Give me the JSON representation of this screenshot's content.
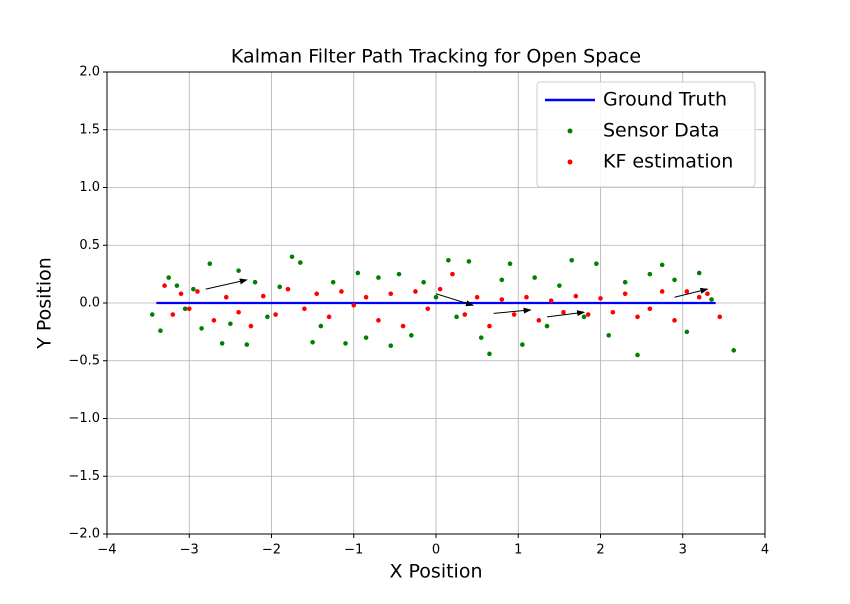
{
  "chart_data": {
    "type": "scatter",
    "title": "Kalman Filter Path Tracking for Open Space",
    "xlabel": "X Position",
    "ylabel": "Y Position",
    "xlim": [
      -4,
      4
    ],
    "ylim": [
      -2,
      2
    ],
    "xticks": [
      {
        "value": -4,
        "label": "−4"
      },
      {
        "value": -3,
        "label": "−3"
      },
      {
        "value": -2,
        "label": "−2"
      },
      {
        "value": -1,
        "label": "−1"
      },
      0,
      1,
      2,
      3,
      4
    ],
    "yticks": [
      {
        "value": -2,
        "label": "−2.0"
      },
      {
        "value": -1.5,
        "label": "−1.5"
      },
      {
        "value": -1,
        "label": "−1.0"
      },
      {
        "value": -0.5,
        "label": "−0.5"
      },
      {
        "value": 0,
        "label": "0.0"
      },
      0.5,
      {
        "value": 1,
        "label": "1.0"
      },
      1.5,
      {
        "value": 2,
        "label": "2.0"
      }
    ],
    "grid": true,
    "legend": "upper right",
    "series": [
      {
        "name": "Ground Truth",
        "type": "line",
        "color": "#0000ff",
        "x": [
          -3.4,
          3.4
        ],
        "y": [
          0,
          0
        ]
      },
      {
        "name": "Sensor Data",
        "type": "scatter",
        "color": "#008000",
        "x": [
          -3.45,
          -3.35,
          -3.25,
          -3.15,
          -3.05,
          -2.95,
          -2.85,
          -2.75,
          -2.6,
          -2.5,
          -2.4,
          -2.3,
          -2.2,
          -2.05,
          -1.9,
          -1.75,
          -1.65,
          -1.5,
          -1.4,
          -1.25,
          -1.1,
          -0.95,
          -0.85,
          -0.7,
          -0.55,
          -0.45,
          -0.3,
          -0.15,
          0,
          0.15,
          0.25,
          0.4,
          0.55,
          0.65,
          0.8,
          0.9,
          1.05,
          1.2,
          1.35,
          1.5,
          1.65,
          1.8,
          1.95,
          2.1,
          2.3,
          2.45,
          2.6,
          2.75,
          2.9,
          3.05,
          3.2,
          3.35,
          3.62
        ],
        "y": [
          -0.1,
          -0.24,
          0.22,
          0.15,
          -0.05,
          0.12,
          -0.22,
          0.34,
          -0.35,
          -0.18,
          0.28,
          -0.36,
          0.18,
          -0.12,
          0.14,
          0.4,
          0.35,
          -0.34,
          -0.2,
          0.18,
          -0.35,
          0.26,
          -0.3,
          0.22,
          -0.37,
          0.25,
          -0.28,
          0.18,
          0.05,
          0.37,
          -0.12,
          0.36,
          -0.3,
          -0.44,
          0.2,
          0.34,
          -0.36,
          0.22,
          -0.2,
          0.15,
          0.37,
          -0.12,
          0.34,
          -0.28,
          0.18,
          -0.45,
          0.25,
          0.33,
          0.2,
          -0.25,
          0.26,
          0.03,
          -0.41
        ]
      },
      {
        "name": "KF estimation",
        "type": "scatter",
        "color": "#ff0000",
        "x": [
          -3.3,
          -3.2,
          -3.1,
          -3.0,
          -2.9,
          -2.7,
          -2.55,
          -2.4,
          -2.25,
          -2.1,
          -1.95,
          -1.8,
          -1.6,
          -1.45,
          -1.3,
          -1.15,
          -1.0,
          -0.85,
          -0.7,
          -0.55,
          -0.4,
          -0.25,
          -0.1,
          0.05,
          0.2,
          0.35,
          0.5,
          0.65,
          0.8,
          0.95,
          1.1,
          1.25,
          1.4,
          1.55,
          1.7,
          1.85,
          2.0,
          2.15,
          2.3,
          2.45,
          2.6,
          2.75,
          2.9,
          3.05,
          3.2,
          3.3,
          3.45
        ],
        "y": [
          0.15,
          -0.1,
          0.08,
          -0.05,
          0.1,
          -0.15,
          0.05,
          -0.08,
          -0.2,
          0.06,
          -0.1,
          0.12,
          -0.05,
          0.08,
          -0.12,
          0.1,
          -0.02,
          0.05,
          -0.15,
          0.08,
          -0.2,
          0.1,
          -0.05,
          0.12,
          0.25,
          -0.1,
          0.05,
          -0.2,
          0.03,
          -0.1,
          0.05,
          -0.15,
          0.02,
          -0.08,
          0.06,
          -0.1,
          0.04,
          -0.08,
          0.08,
          -0.12,
          -0.05,
          0.1,
          -0.15,
          0.1,
          0.05,
          0.08,
          -0.12
        ]
      },
      {
        "type": "quiver",
        "color": "#000000",
        "x": [
          -2.8,
          0,
          0.7,
          1.35,
          2.9
        ],
        "y": [
          0.12,
          0.08,
          -0.09,
          -0.12,
          0.05
        ],
        "u": [
          0.5,
          0.45,
          0.45,
          0.45,
          0.4
        ],
        "v": [
          0.08,
          -0.1,
          0.03,
          0.04,
          0.07
        ]
      }
    ]
  }
}
